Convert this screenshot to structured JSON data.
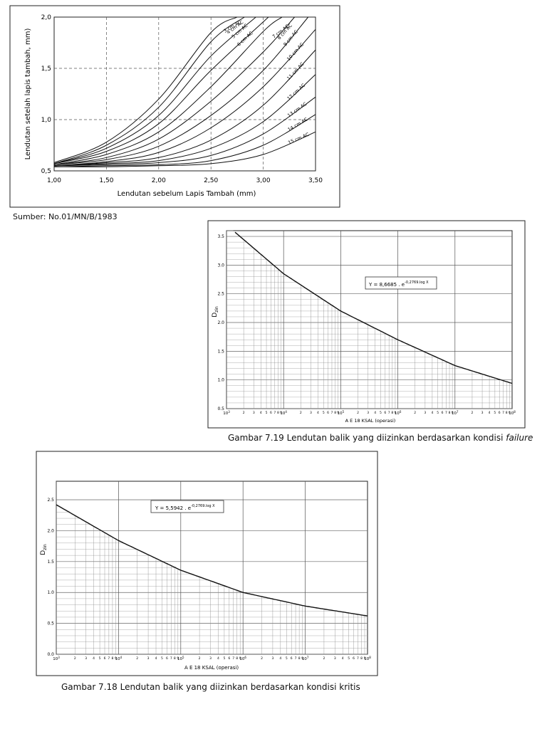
{
  "source_note": "Sumber: No.01/MN/B/1983",
  "caption_719_main": "Gambar 7.19 Lendutan balik yang diizinkan berdasarkan kondisi ",
  "caption_719_italic": "failure",
  "caption_718": "Gambar 7.18 Lendutan balik yang diizinkan berdasarkan kondisi kritis",
  "chart_data": [
    {
      "type": "line",
      "title": "",
      "xlabel": "Lendutan sebelum Lapis Tambah (mm)",
      "ylabel": "Lendutan setelah lapis tambah, mm)",
      "xlim": [
        1.0,
        3.5
      ],
      "ylim": [
        0.5,
        2.0
      ],
      "x_ticks": [
        "1,00",
        "1,50",
        "2,00",
        "2,50",
        "3,00",
        "3,50"
      ],
      "y_ticks": [
        "0,5",
        "1,0",
        "1,5",
        "2,0"
      ],
      "grid": true,
      "series": [
        {
          "name": "3 cm AC",
          "x": [
            1.0,
            1.5,
            2.0,
            2.5,
            2.75
          ],
          "y": [
            0.58,
            0.78,
            1.2,
            1.85,
            2.0
          ]
        },
        {
          "name": "4 cm AC",
          "x": [
            1.0,
            1.5,
            2.0,
            2.5,
            2.82
          ],
          "y": [
            0.57,
            0.75,
            1.12,
            1.76,
            2.0
          ]
        },
        {
          "name": "5 cm AC",
          "x": [
            1.0,
            1.5,
            2.0,
            2.5,
            2.93
          ],
          "y": [
            0.57,
            0.72,
            1.04,
            1.62,
            2.0
          ]
        },
        {
          "name": "6 cm AC",
          "x": [
            1.0,
            1.5,
            2.0,
            2.5,
            3.05
          ],
          "y": [
            0.57,
            0.69,
            0.96,
            1.48,
            2.0
          ]
        },
        {
          "name": "7 cm AC",
          "x": [
            1.0,
            1.5,
            2.0,
            2.5,
            3.0,
            3.18
          ],
          "y": [
            0.56,
            0.66,
            0.88,
            1.32,
            1.86,
            2.0
          ]
        },
        {
          "name": "8 cm AC",
          "x": [
            1.0,
            1.5,
            2.0,
            2.5,
            3.0,
            3.3
          ],
          "y": [
            0.56,
            0.63,
            0.81,
            1.18,
            1.66,
            2.0
          ]
        },
        {
          "name": "9 cm AC",
          "x": [
            1.0,
            1.5,
            2.0,
            2.5,
            3.0,
            3.43
          ],
          "y": [
            0.56,
            0.61,
            0.74,
            1.04,
            1.48,
            2.0
          ]
        },
        {
          "name": "10 cm AC",
          "x": [
            1.0,
            1.5,
            2.0,
            2.5,
            3.0,
            3.5
          ],
          "y": [
            0.55,
            0.59,
            0.68,
            0.92,
            1.32,
            1.88
          ]
        },
        {
          "name": "11 cm AC",
          "x": [
            1.0,
            1.5,
            2.0,
            2.5,
            3.0,
            3.5
          ],
          "y": [
            0.55,
            0.58,
            0.63,
            0.8,
            1.14,
            1.68
          ]
        },
        {
          "name": "12 cm AC",
          "x": [
            1.0,
            1.5,
            2.0,
            2.5,
            3.0,
            3.5
          ],
          "y": [
            0.55,
            0.57,
            0.6,
            0.72,
            0.98,
            1.44
          ]
        },
        {
          "name": "13 cm AC",
          "x": [
            1.0,
            1.5,
            2.0,
            2.5,
            3.0,
            3.5
          ],
          "y": [
            0.55,
            0.56,
            0.58,
            0.65,
            0.86,
            1.22
          ]
        },
        {
          "name": "14 cm AC",
          "x": [
            1.0,
            1.5,
            2.0,
            2.5,
            3.0,
            3.5
          ],
          "y": [
            0.54,
            0.55,
            0.56,
            0.6,
            0.75,
            1.05
          ]
        },
        {
          "name": "15 cm AC",
          "x": [
            1.0,
            1.5,
            2.0,
            2.5,
            3.0,
            3.5
          ],
          "y": [
            0.54,
            0.54,
            0.55,
            0.57,
            0.66,
            0.88
          ]
        }
      ]
    },
    {
      "type": "line",
      "title": "",
      "xlabel": "A E 18 KSAL (operasi)",
      "ylabel": "D",
      "ylabel_sub": "zin",
      "x_scale": "log",
      "xlim": [
        1000,
        100000000
      ],
      "ylim": [
        0.5,
        3.6
      ],
      "y_ticks": [
        "0.5",
        "1.0",
        "1.5",
        "2.0",
        "2.5",
        "3.0",
        "3.5"
      ],
      "x_decade_labels": [
        "10",
        "10",
        "10",
        "10",
        "10",
        "10"
      ],
      "x_decade_exponents": [
        "3",
        "4",
        "5",
        "6",
        "7",
        "8"
      ],
      "x_minor_labels": [
        "2",
        "3",
        "4",
        "5",
        "6",
        "7",
        "8",
        "9"
      ],
      "grid": true,
      "equation": {
        "prefix": "Y = 8,6685 . e",
        "exponent": "-0,2769.log X"
      },
      "series": [
        {
          "x": [
            1000,
            10000,
            100000,
            1000000,
            10000000,
            100000000
          ],
          "y": [
            3.7,
            2.85,
            2.2,
            1.7,
            1.25,
            0.94
          ]
        }
      ]
    },
    {
      "type": "line",
      "title": "",
      "xlabel": "A E 18 KSAL (operasi)",
      "ylabel": "D",
      "ylabel_sub": "zin",
      "x_scale": "log",
      "xlim": [
        1000,
        100000000
      ],
      "ylim": [
        0.0,
        2.8
      ],
      "y_ticks": [
        "0.0",
        "0.5",
        "1.0",
        "1.5",
        "2.0",
        "2.5"
      ],
      "x_decade_labels": [
        "10",
        "10",
        "10",
        "10",
        "10",
        "10"
      ],
      "x_decade_exponents": [
        "3",
        "4",
        "5",
        "6",
        "7",
        "8"
      ],
      "x_minor_labels": [
        "2",
        "3",
        "4",
        "5",
        "6",
        "7",
        "8",
        "9"
      ],
      "grid": true,
      "equation": {
        "prefix": "Y = 5,5942 . e",
        "exponent": "-0,2769.log X"
      },
      "series": [
        {
          "x": [
            1000,
            10000,
            100000,
            1000000,
            10000000,
            100000000
          ],
          "y": [
            2.42,
            1.84,
            1.36,
            1.0,
            0.78,
            0.62
          ]
        }
      ]
    }
  ]
}
